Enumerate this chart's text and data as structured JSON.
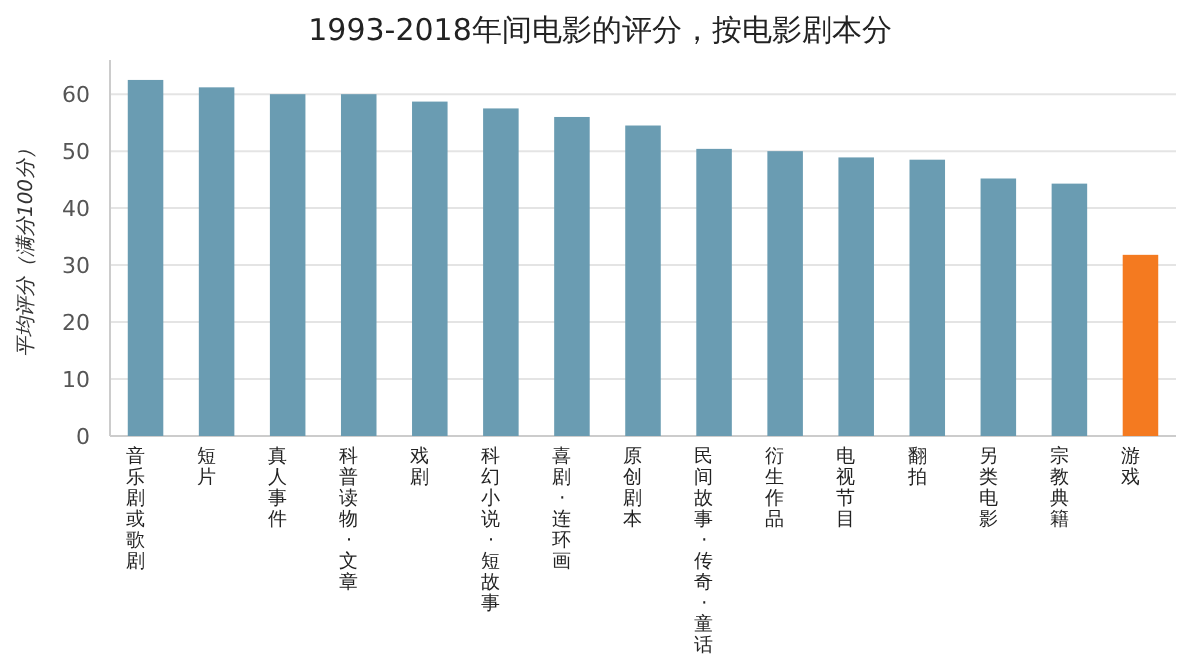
{
  "chart_data": {
    "type": "bar",
    "title": "1993-2018年间电影的评分，按电影剧本分",
    "ylabel": "平均评分（满分100分）",
    "categories": [
      "音乐剧或歌剧",
      "短片",
      "真人事件",
      "科普读物·文章",
      "戏剧",
      "科幻小说·短故事",
      "喜剧·连环画",
      "原创剧本",
      "民间故事·传奇·童话",
      "衍生作品",
      "电视节目",
      "翻拍",
      "另类电影",
      "宗教典籍",
      "游戏"
    ],
    "values": [
      62.5,
      61.2,
      60,
      60,
      58.7,
      57.5,
      56,
      54.5,
      50.4,
      50,
      48.9,
      48.5,
      45.2,
      44.3,
      31.8
    ],
    "colors": [
      "#6a9cb2",
      "#6a9cb2",
      "#6a9cb2",
      "#6a9cb2",
      "#6a9cb2",
      "#6a9cb2",
      "#6a9cb2",
      "#6a9cb2",
      "#6a9cb2",
      "#6a9cb2",
      "#6a9cb2",
      "#6a9cb2",
      "#6a9cb2",
      "#6a9cb2",
      "#f47a20"
    ],
    "ylim": [
      0,
      66
    ],
    "yticks": [
      0,
      10,
      20,
      30,
      40,
      50,
      60
    ],
    "grid": "y"
  }
}
